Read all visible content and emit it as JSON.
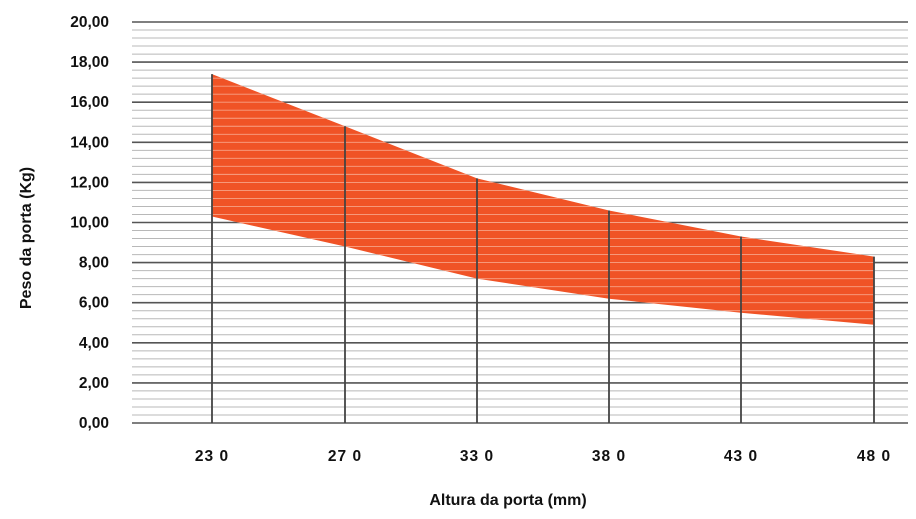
{
  "chart_data": {
    "type": "area",
    "title": "",
    "xlabel": "Altura da porta (mm)",
    "ylabel": "Peso da porta (Kg)",
    "categories": [
      "230",
      "270",
      "330",
      "380",
      "430",
      "480"
    ],
    "category_tick_labels": [
      "23 0",
      "27 0",
      "33 0",
      "38 0",
      "43 0",
      "48 0"
    ],
    "y_ticks": [
      "0,00",
      "2,00",
      "4,00",
      "6,00",
      "8,00",
      "10,00",
      "12,00",
      "14,00",
      "16,00",
      "18,00",
      "20,00"
    ],
    "ylim": [
      0,
      20
    ],
    "grid": true,
    "series": [
      {
        "values": [
          17.4,
          14.8,
          12.2,
          10.6,
          9.3,
          8.3
        ]
      },
      {
        "values": [
          10.3,
          8.8,
          7.2,
          6.2,
          5.5,
          4.9
        ]
      }
    ],
    "colors": {
      "band": "#f05326",
      "grid_major": "#555555",
      "grid_minor": "#b8b8b8",
      "vertical": "#444444"
    }
  }
}
